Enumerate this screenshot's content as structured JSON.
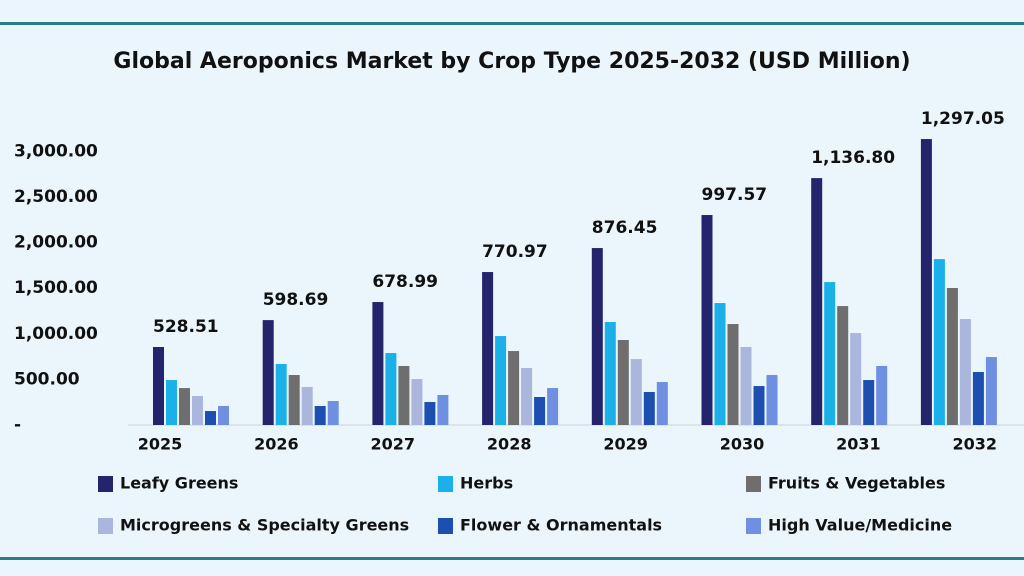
{
  "chart_data": {
    "type": "bar",
    "title": "Global Aeroponics Market by Crop Type 2025-2032 (USD Million)",
    "categories": [
      "2025",
      "2026",
      "2027",
      "2028",
      "2029",
      "2030",
      "2031",
      "2032"
    ],
    "annotations": [
      "528.51",
      "598.69",
      "678.99",
      "770.97",
      "876.45",
      "997.57",
      "1,136.80",
      "1,297.05"
    ],
    "series": [
      {
        "name": "Leafy Greens",
        "color": "#24246c",
        "values": [
          855,
          1150,
          1348,
          1677,
          1940,
          2302,
          2707,
          3135
        ]
      },
      {
        "name": "Herbs",
        "color": "#1bb0e8",
        "values": [
          493,
          669,
          789,
          975,
          1129,
          1337,
          1567,
          1819
        ]
      },
      {
        "name": "Fruits & Vegetables",
        "color": "#6e6e6e",
        "values": [
          405,
          548,
          647,
          811,
          932,
          1107,
          1304,
          1502
        ]
      },
      {
        "name": "Microgreens & Specialty Greens",
        "color": "#aab6dc",
        "values": [
          318,
          417,
          504,
          625,
          723,
          855,
          1008,
          1162
        ]
      },
      {
        "name": "Flower & Ornamentals",
        "color": "#1c4fb0",
        "values": [
          153,
          208,
          252,
          307,
          362,
          427,
          493,
          581
        ]
      },
      {
        "name": "High Value/Medicine",
        "color": "#6f8fe0",
        "values": [
          208,
          263,
          329,
          405,
          471,
          548,
          647,
          745
        ]
      }
    ],
    "ylim": [
      0,
      3300
    ],
    "yticks": [
      {
        "value": 0,
        "label": "-"
      },
      {
        "value": 500,
        "label": "500.00"
      },
      {
        "value": 1000,
        "label": "1,000.00"
      },
      {
        "value": 1500,
        "label": "1,500.00"
      },
      {
        "value": 2000,
        "label": "2,000.00"
      },
      {
        "value": 2500,
        "label": "2,500.00"
      },
      {
        "value": 3000,
        "label": "3,000.00"
      }
    ],
    "grid": false
  }
}
